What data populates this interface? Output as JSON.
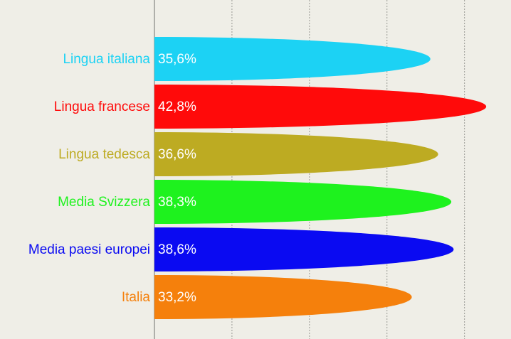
{
  "chart_data": {
    "type": "bullet-bar",
    "categories": [
      "Lingua italiana",
      "Lingua francese",
      "Lingua tedesca",
      "Media Svizzera",
      "Media paesi europei",
      "Italia"
    ],
    "values": [
      35.6,
      42.8,
      36.6,
      38.3,
      38.6,
      33.2
    ],
    "value_labels": [
      "35,6%",
      "42,8%",
      "36,6%",
      "38,3%",
      "38,6%",
      "33,2%"
    ],
    "colors": [
      "#1cd2f4",
      "#ff0a0a",
      "#bdab22",
      "#1ef21e",
      "#0a0af2",
      "#f5800c"
    ],
    "xlim": [
      0,
      46
    ],
    "xticks": [
      0,
      10,
      20,
      30,
      40
    ],
    "grid": true
  }
}
